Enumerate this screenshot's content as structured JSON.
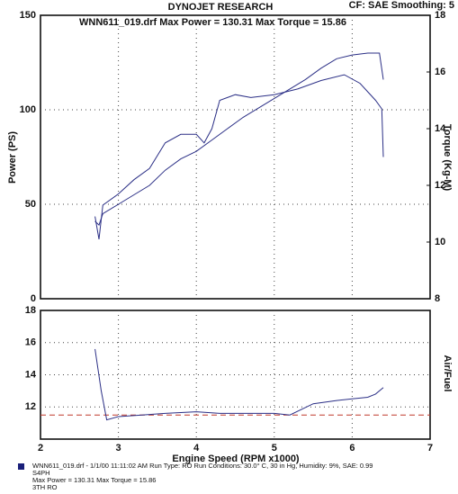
{
  "header": {
    "title": "DYNOJET RESEARCH",
    "settings": "CF: SAE  Smoothing: 5"
  },
  "chart_data": [
    {
      "type": "line",
      "subtitle": "WNN611_019.drf Max Power = 130.31    Max Torque = 15.86",
      "ylabel": "Power (PS)",
      "y2label": "Torque (Kg-M)",
      "xlim": [
        2,
        7
      ],
      "xgrid": [
        3,
        4,
        5,
        6
      ],
      "ylim": [
        0,
        150
      ],
      "yticks": [
        0,
        50,
        100,
        150
      ],
      "y2lim": [
        8,
        18
      ],
      "y2ticks": [
        8,
        10,
        12,
        14,
        16,
        18
      ],
      "grid": true,
      "series": [
        {
          "name": "Power",
          "color": "#2b2f86",
          "x": [
            2.7,
            2.75,
            2.8,
            3.0,
            3.2,
            3.4,
            3.6,
            3.8,
            4.0,
            4.2,
            4.4,
            4.6,
            4.8,
            5.0,
            5.2,
            5.4,
            5.6,
            5.8,
            6.0,
            6.2,
            6.35,
            6.4
          ],
          "values": [
            41,
            39,
            45,
            50,
            55,
            60,
            68,
            74,
            78,
            84,
            90,
            96,
            101,
            106,
            111,
            116,
            122,
            127,
            129,
            130,
            130,
            116
          ]
        },
        {
          "name": "Torque",
          "color": "#2b2f86",
          "axis": "y2",
          "x": [
            2.7,
            2.75,
            2.8,
            3.0,
            3.2,
            3.4,
            3.6,
            3.8,
            4.0,
            4.1,
            4.2,
            4.3,
            4.5,
            4.7,
            5.0,
            5.3,
            5.6,
            5.9,
            6.1,
            6.3,
            6.38,
            6.4
          ],
          "values": [
            10.9,
            10.1,
            11.3,
            11.7,
            12.2,
            12.6,
            13.5,
            13.8,
            13.8,
            13.5,
            14.0,
            15.0,
            15.2,
            15.1,
            15.2,
            15.4,
            15.7,
            15.9,
            15.6,
            15.0,
            14.7,
            13.0
          ]
        }
      ]
    },
    {
      "type": "line",
      "xlabel": "Engine Speed (RPM x1000)",
      "ylabel": "Air/Fuel",
      "xlim": [
        2,
        7
      ],
      "xticks": [
        2,
        3,
        4,
        5,
        6,
        7
      ],
      "ylim": [
        10,
        18
      ],
      "yticks": [
        12,
        14,
        16,
        18
      ],
      "grid": true,
      "hline": {
        "value": 11.5,
        "color": "#c0392b"
      },
      "series": [
        {
          "name": "Air/Fuel",
          "color": "#2b2f86",
          "x": [
            2.7,
            2.78,
            2.85,
            3.0,
            3.3,
            3.6,
            4.0,
            4.3,
            4.6,
            5.0,
            5.2,
            5.5,
            5.8,
            6.0,
            6.2,
            6.3,
            6.4
          ],
          "values": [
            15.6,
            13.0,
            11.2,
            11.4,
            11.5,
            11.6,
            11.7,
            11.6,
            11.6,
            11.6,
            11.5,
            12.2,
            12.4,
            12.5,
            12.6,
            12.8,
            13.2
          ]
        }
      ]
    }
  ],
  "footer": {
    "lines": [
      "WNN611_019.drf - 1/1/00 11:11:02 AM  Run Type: RO  Run Conditions: 30.0° C, 30 in Hg, Humidity: 9%, SAE: 0.99",
      "S4PH",
      "Max Power = 130.31  Max Torque = 15.86",
      "3TH RO"
    ]
  }
}
